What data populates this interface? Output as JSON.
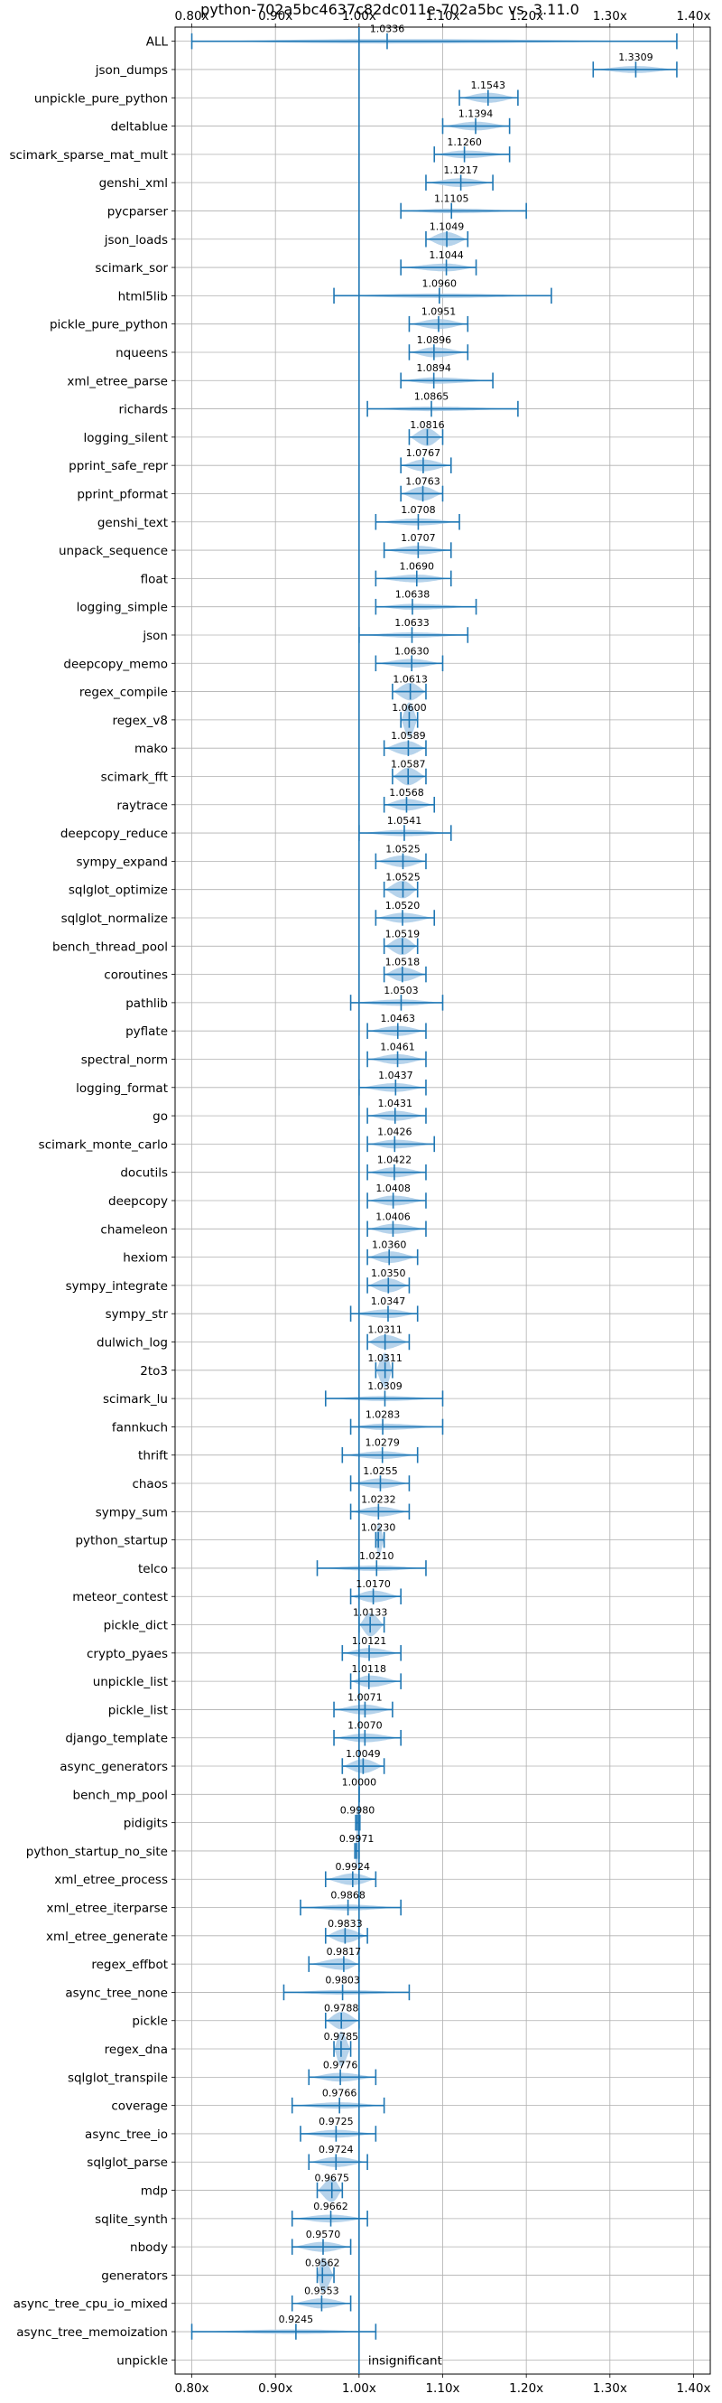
{
  "chart_data": {
    "type": "violin",
    "title": "python-702a5bc4637c82dc011e-702a5bc vs. 3.11.0",
    "xlim": [
      0.78,
      1.42
    ],
    "xticks": [
      0.8,
      0.9,
      1.0,
      1.1,
      1.2,
      1.3,
      1.4
    ],
    "xtick_labels": [
      "0.80x",
      "0.90x",
      "1.00x",
      "1.10x",
      "1.20x",
      "1.30x",
      "1.40x"
    ],
    "grid": true,
    "reference_line": 1.0,
    "colors": {
      "body": "#a9cbe7",
      "line": "#1f77b4",
      "ref": "#1f77b4",
      "grid": "#b0b0b0"
    },
    "benchmarks": [
      {
        "name": "ALL",
        "mean": 1.0336,
        "label": "1.0336",
        "min": 0.8,
        "max": 1.38
      },
      {
        "name": "json_dumps",
        "mean": 1.3309,
        "label": "1.3309",
        "min": 1.28,
        "max": 1.38
      },
      {
        "name": "unpickle_pure_python",
        "mean": 1.1543,
        "label": "1.1543",
        "min": 1.12,
        "max": 1.19
      },
      {
        "name": "deltablue",
        "mean": 1.1394,
        "label": "1.1394",
        "min": 1.1,
        "max": 1.18
      },
      {
        "name": "scimark_sparse_mat_mult",
        "mean": 1.126,
        "label": "1.1260",
        "min": 1.09,
        "max": 1.18
      },
      {
        "name": "genshi_xml",
        "mean": 1.1217,
        "label": "1.1217",
        "min": 1.08,
        "max": 1.16
      },
      {
        "name": "pycparser",
        "mean": 1.1105,
        "label": "1.1105",
        "min": 1.05,
        "max": 1.2
      },
      {
        "name": "json_loads",
        "mean": 1.1049,
        "label": "1.1049",
        "min": 1.08,
        "max": 1.13
      },
      {
        "name": "scimark_sor",
        "mean": 1.1044,
        "label": "1.1044",
        "min": 1.05,
        "max": 1.14
      },
      {
        "name": "html5lib",
        "mean": 1.096,
        "label": "1.0960",
        "min": 0.97,
        "max": 1.23
      },
      {
        "name": "pickle_pure_python",
        "mean": 1.0951,
        "label": "1.0951",
        "min": 1.06,
        "max": 1.13
      },
      {
        "name": "nqueens",
        "mean": 1.0896,
        "label": "1.0896",
        "min": 1.06,
        "max": 1.13
      },
      {
        "name": "xml_etree_parse",
        "mean": 1.0894,
        "label": "1.0894",
        "min": 1.05,
        "max": 1.16
      },
      {
        "name": "richards",
        "mean": 1.0865,
        "label": "1.0865",
        "min": 1.01,
        "max": 1.19
      },
      {
        "name": "logging_silent",
        "mean": 1.0816,
        "label": "1.0816",
        "min": 1.06,
        "max": 1.1
      },
      {
        "name": "pprint_safe_repr",
        "mean": 1.0767,
        "label": "1.0767",
        "min": 1.05,
        "max": 1.11
      },
      {
        "name": "pprint_pformat",
        "mean": 1.0763,
        "label": "1.0763",
        "min": 1.05,
        "max": 1.1
      },
      {
        "name": "genshi_text",
        "mean": 1.0708,
        "label": "1.0708",
        "min": 1.02,
        "max": 1.12
      },
      {
        "name": "unpack_sequence",
        "mean": 1.0707,
        "label": "1.0707",
        "min": 1.03,
        "max": 1.11
      },
      {
        "name": "float",
        "mean": 1.069,
        "label": "1.0690",
        "min": 1.02,
        "max": 1.11
      },
      {
        "name": "logging_simple",
        "mean": 1.0638,
        "label": "1.0638",
        "min": 1.02,
        "max": 1.14
      },
      {
        "name": "json",
        "mean": 1.0633,
        "label": "1.0633",
        "min": 1.0,
        "max": 1.13
      },
      {
        "name": "deepcopy_memo",
        "mean": 1.063,
        "label": "1.0630",
        "min": 1.02,
        "max": 1.1
      },
      {
        "name": "regex_compile",
        "mean": 1.0613,
        "label": "1.0613",
        "min": 1.04,
        "max": 1.08
      },
      {
        "name": "regex_v8",
        "mean": 1.06,
        "label": "1.0600",
        "min": 1.05,
        "max": 1.07
      },
      {
        "name": "mako",
        "mean": 1.0589,
        "label": "1.0589",
        "min": 1.03,
        "max": 1.08
      },
      {
        "name": "scimark_fft",
        "mean": 1.0587,
        "label": "1.0587",
        "min": 1.04,
        "max": 1.08
      },
      {
        "name": "raytrace",
        "mean": 1.0568,
        "label": "1.0568",
        "min": 1.03,
        "max": 1.09
      },
      {
        "name": "deepcopy_reduce",
        "mean": 1.0541,
        "label": "1.0541",
        "min": 1.0,
        "max": 1.11
      },
      {
        "name": "sympy_expand",
        "mean": 1.0525,
        "label": "1.0525",
        "min": 1.02,
        "max": 1.08
      },
      {
        "name": "sqlglot_optimize",
        "mean": 1.0525,
        "label": "1.0525",
        "min": 1.03,
        "max": 1.07
      },
      {
        "name": "sqlglot_normalize",
        "mean": 1.052,
        "label": "1.0520",
        "min": 1.02,
        "max": 1.09
      },
      {
        "name": "bench_thread_pool",
        "mean": 1.0519,
        "label": "1.0519",
        "min": 1.03,
        "max": 1.07
      },
      {
        "name": "coroutines",
        "mean": 1.0518,
        "label": "1.0518",
        "min": 1.03,
        "max": 1.08
      },
      {
        "name": "pathlib",
        "mean": 1.0503,
        "label": "1.0503",
        "min": 0.99,
        "max": 1.1
      },
      {
        "name": "pyflate",
        "mean": 1.0463,
        "label": "1.0463",
        "min": 1.01,
        "max": 1.08
      },
      {
        "name": "spectral_norm",
        "mean": 1.0461,
        "label": "1.0461",
        "min": 1.01,
        "max": 1.08
      },
      {
        "name": "logging_format",
        "mean": 1.0437,
        "label": "1.0437",
        "min": 1.0,
        "max": 1.08
      },
      {
        "name": "go",
        "mean": 1.0431,
        "label": "1.0431",
        "min": 1.01,
        "max": 1.08
      },
      {
        "name": "scimark_monte_carlo",
        "mean": 1.0426,
        "label": "1.0426",
        "min": 1.01,
        "max": 1.09
      },
      {
        "name": "docutils",
        "mean": 1.0422,
        "label": "1.0422",
        "min": 1.01,
        "max": 1.08
      },
      {
        "name": "deepcopy",
        "mean": 1.0408,
        "label": "1.0408",
        "min": 1.01,
        "max": 1.08
      },
      {
        "name": "chameleon",
        "mean": 1.0406,
        "label": "1.0406",
        "min": 1.01,
        "max": 1.08
      },
      {
        "name": "hexiom",
        "mean": 1.036,
        "label": "1.0360",
        "min": 1.01,
        "max": 1.07
      },
      {
        "name": "sympy_integrate",
        "mean": 1.035,
        "label": "1.0350",
        "min": 1.01,
        "max": 1.06
      },
      {
        "name": "sympy_str",
        "mean": 1.0347,
        "label": "1.0347",
        "min": 0.99,
        "max": 1.07
      },
      {
        "name": "dulwich_log",
        "mean": 1.0311,
        "label": "1.0311",
        "min": 1.01,
        "max": 1.06
      },
      {
        "name": "2to3",
        "mean": 1.0311,
        "label": "1.0311",
        "min": 1.02,
        "max": 1.04
      },
      {
        "name": "scimark_lu",
        "mean": 1.0309,
        "label": "1.0309",
        "min": 0.96,
        "max": 1.1
      },
      {
        "name": "fannkuch",
        "mean": 1.0283,
        "label": "1.0283",
        "min": 0.99,
        "max": 1.1
      },
      {
        "name": "thrift",
        "mean": 1.0279,
        "label": "1.0279",
        "min": 0.98,
        "max": 1.07
      },
      {
        "name": "chaos",
        "mean": 1.0255,
        "label": "1.0255",
        "min": 0.99,
        "max": 1.06
      },
      {
        "name": "sympy_sum",
        "mean": 1.0232,
        "label": "1.0232",
        "min": 0.99,
        "max": 1.06
      },
      {
        "name": "python_startup",
        "mean": 1.023,
        "label": "1.0230",
        "min": 1.02,
        "max": 1.03
      },
      {
        "name": "telco",
        "mean": 1.021,
        "label": "1.0210",
        "min": 0.95,
        "max": 1.08
      },
      {
        "name": "meteor_contest",
        "mean": 1.017,
        "label": "1.0170",
        "min": 0.99,
        "max": 1.05
      },
      {
        "name": "pickle_dict",
        "mean": 1.0133,
        "label": "1.0133",
        "min": 1.0,
        "max": 1.03
      },
      {
        "name": "crypto_pyaes",
        "mean": 1.0121,
        "label": "1.0121",
        "min": 0.98,
        "max": 1.05
      },
      {
        "name": "unpickle_list",
        "mean": 1.0118,
        "label": "1.0118",
        "min": 0.99,
        "max": 1.05
      },
      {
        "name": "pickle_list",
        "mean": 1.0071,
        "label": "1.0071",
        "min": 0.97,
        "max": 1.04
      },
      {
        "name": "django_template",
        "mean": 1.007,
        "label": "1.0070",
        "min": 0.97,
        "max": 1.05
      },
      {
        "name": "async_generators",
        "mean": 1.0049,
        "label": "1.0049",
        "min": 0.98,
        "max": 1.03
      },
      {
        "name": "bench_mp_pool",
        "mean": 1.0,
        "label": "1.0000",
        "min": 1.0,
        "max": 1.0
      },
      {
        "name": "pidigits",
        "mean": 0.998,
        "label": "0.9980",
        "min": 0.996,
        "max": 1.001
      },
      {
        "name": "python_startup_no_site",
        "mean": 0.9971,
        "label": "0.9971",
        "min": 0.995,
        "max": 1.0
      },
      {
        "name": "xml_etree_process",
        "mean": 0.9924,
        "label": "0.9924",
        "min": 0.96,
        "max": 1.02
      },
      {
        "name": "xml_etree_iterparse",
        "mean": 0.9868,
        "label": "0.9868",
        "min": 0.93,
        "max": 1.05
      },
      {
        "name": "xml_etree_generate",
        "mean": 0.9833,
        "label": "0.9833",
        "min": 0.96,
        "max": 1.01
      },
      {
        "name": "regex_effbot",
        "mean": 0.9817,
        "label": "0.9817",
        "min": 0.94,
        "max": 1.0
      },
      {
        "name": "async_tree_none",
        "mean": 0.9803,
        "label": "0.9803",
        "min": 0.91,
        "max": 1.06
      },
      {
        "name": "pickle",
        "mean": 0.9788,
        "label": "0.9788",
        "min": 0.96,
        "max": 1.0
      },
      {
        "name": "regex_dna",
        "mean": 0.9785,
        "label": "0.9785",
        "min": 0.97,
        "max": 0.99
      },
      {
        "name": "sqlglot_transpile",
        "mean": 0.9776,
        "label": "0.9776",
        "min": 0.94,
        "max": 1.02
      },
      {
        "name": "coverage",
        "mean": 0.9766,
        "label": "0.9766",
        "min": 0.92,
        "max": 1.03
      },
      {
        "name": "async_tree_io",
        "mean": 0.9725,
        "label": "0.9725",
        "min": 0.93,
        "max": 1.02
      },
      {
        "name": "sqlglot_parse",
        "mean": 0.9724,
        "label": "0.9724",
        "min": 0.94,
        "max": 1.01
      },
      {
        "name": "mdp",
        "mean": 0.9675,
        "label": "0.9675",
        "min": 0.95,
        "max": 0.98
      },
      {
        "name": "sqlite_synth",
        "mean": 0.9662,
        "label": "0.9662",
        "min": 0.92,
        "max": 1.01
      },
      {
        "name": "nbody",
        "mean": 0.957,
        "label": "0.9570",
        "min": 0.92,
        "max": 0.99
      },
      {
        "name": "generators",
        "mean": 0.9562,
        "label": "0.9562",
        "min": 0.95,
        "max": 0.97
      },
      {
        "name": "async_tree_cpu_io_mixed",
        "mean": 0.9553,
        "label": "0.9553",
        "min": 0.92,
        "max": 0.99
      },
      {
        "name": "async_tree_memoization",
        "mean": 0.9245,
        "label": "0.9245",
        "min": 0.8,
        "max": 1.02
      },
      {
        "name": "unpickle",
        "mean": null,
        "label": "insignificant",
        "min": null,
        "max": null
      }
    ]
  }
}
